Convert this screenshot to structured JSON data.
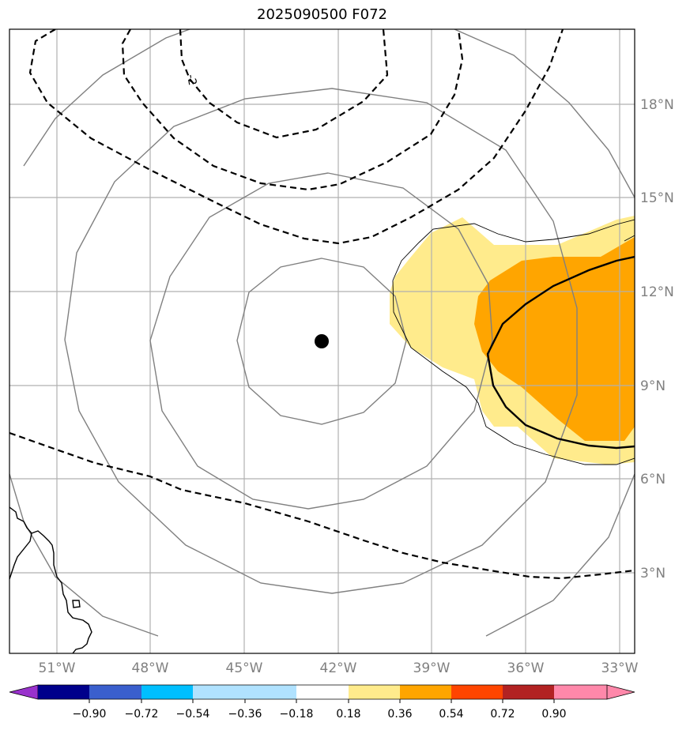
{
  "title": "2025090500 F072",
  "lon_labels": [
    "51°W",
    "48°W",
    "45°W",
    "42°W",
    "39°W",
    "36°W",
    "33°W"
  ],
  "lat_labels": [
    "18°N",
    "15°N",
    "12°N",
    "9°N",
    "6°N",
    "3°N"
  ],
  "contour_label": "-2",
  "colorbar": {
    "tick_labels": [
      "−0.90",
      "−0.72",
      "−0.54",
      "−0.36",
      "−0.18",
      "0.18",
      "0.36",
      "0.54",
      "0.72",
      "0.90"
    ],
    "colors": [
      "#9932cc",
      "#00008b",
      "#3a5fcd",
      "#00bfff",
      "#b0e2ff",
      "#ffffff",
      "#ffeb8c",
      "#ffa500",
      "#ff4500",
      "#b22222",
      "#ff88aa"
    ]
  },
  "colors": {
    "grid": "#b0b0b0",
    "circle_contours": "#808080",
    "label_gray": "#808080",
    "shade_light": "#ffeb8c",
    "shade_orange": "#ffa500"
  },
  "chart_data": {
    "type": "map",
    "lon_range": [
      -52.5,
      -32.5
    ],
    "lat_range": [
      0,
      20
    ],
    "center_marker": {
      "lon": -42.5,
      "lat": 10.3
    }
  }
}
